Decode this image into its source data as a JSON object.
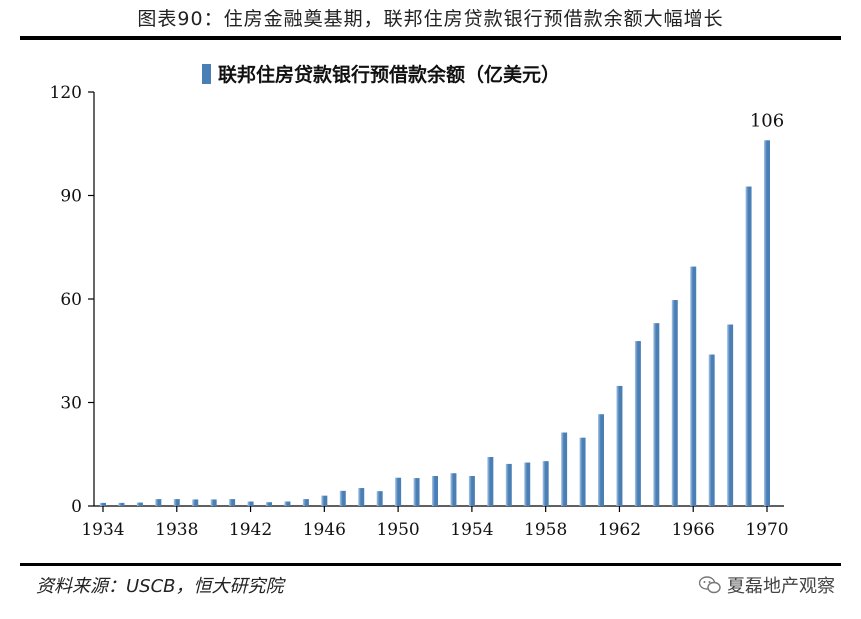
{
  "figure_title": "图表90：住房金融奠基期，联邦住房贷款银行预借款余额大幅增长",
  "source_note": "资料来源：USCB，恒大研究院",
  "watermark_text": "夏磊地产观察",
  "colors": {
    "bar": "#4a7fb5",
    "bar_highlight": "#a9c6e6",
    "axis": "#000000"
  },
  "chart_data": {
    "type": "bar",
    "title": "",
    "xlabel": "",
    "ylabel": "",
    "legend_position": "top-center",
    "grid": false,
    "ylim": [
      0,
      120
    ],
    "yticks": [
      0,
      30,
      60,
      90,
      120
    ],
    "xtick_labels": [
      "1934",
      "1938",
      "1942",
      "1946",
      "1950",
      "1954",
      "1958",
      "1962",
      "1966",
      "1970"
    ],
    "categories": [
      1934,
      1935,
      1936,
      1937,
      1938,
      1939,
      1940,
      1941,
      1942,
      1943,
      1944,
      1945,
      1946,
      1947,
      1948,
      1949,
      1950,
      1951,
      1952,
      1953,
      1954,
      1955,
      1956,
      1957,
      1958,
      1959,
      1960,
      1961,
      1962,
      1963,
      1964,
      1965,
      1966,
      1967,
      1968,
      1969,
      1970
    ],
    "series": [
      {
        "name": "联邦住房贷款银行预借款余额（亿美元）",
        "values": [
          0.9,
          0.9,
          1.0,
          2.0,
          2.0,
          1.9,
          1.9,
          2.0,
          1.3,
          1.1,
          1.3,
          2.0,
          3.0,
          4.4,
          5.2,
          4.3,
          8.2,
          8.1,
          8.7,
          9.5,
          8.7,
          14.2,
          12.2,
          12.6,
          13.0,
          21.3,
          19.8,
          26.6,
          34.8,
          47.8,
          53.0,
          59.7,
          69.4,
          43.9,
          52.6,
          92.6,
          106.0
        ]
      }
    ],
    "annotations": [
      {
        "category": 1970,
        "text": "106"
      }
    ]
  }
}
